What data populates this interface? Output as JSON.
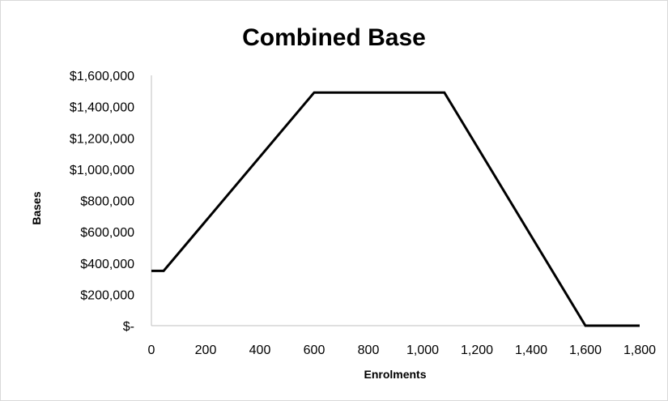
{
  "chart_data": {
    "type": "line",
    "title": "Combined Base",
    "xlabel": "Enrolments",
    "ylabel": "Bases",
    "x_ticks": [
      0,
      200,
      400,
      600,
      800,
      1000,
      1200,
      1400,
      1600,
      1800
    ],
    "x_tick_labels": [
      "0",
      "200",
      "400",
      "600",
      "800",
      "1,000",
      "1,200",
      "1,400",
      "1,600",
      "1,800"
    ],
    "y_ticks": [
      0,
      200000,
      400000,
      600000,
      800000,
      1000000,
      1200000,
      1400000,
      1600000
    ],
    "y_tick_labels": [
      "$-",
      "$200,000",
      "$400,000",
      "$600,000",
      "$800,000",
      "$1,000,000",
      "$1,200,000",
      "$1,400,000",
      "$1,600,000"
    ],
    "xlim": [
      0,
      1800
    ],
    "ylim": [
      0,
      1600000
    ],
    "grid": false,
    "legend": "none",
    "series": [
      {
        "color": "#000000",
        "x": [
          0,
          45,
          600,
          1080,
          1600,
          1800
        ],
        "y": [
          350000,
          350000,
          1490000,
          1490000,
          0,
          0
        ]
      }
    ]
  }
}
